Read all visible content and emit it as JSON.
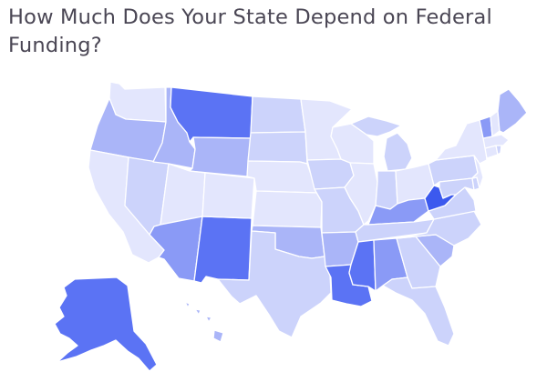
{
  "title": "How Much Does Your State Depend on Federal Funding?",
  "palette": {
    "t1": "#e3e6fd",
    "t2": "#ccd3fb",
    "t3": "#aab5f8",
    "t4": "#8a9af6",
    "t5": "#5b73f4",
    "t6": "#3c59ee",
    "border": "#ffffff"
  },
  "states": [
    {
      "name": "WA",
      "tier": "t1"
    },
    {
      "name": "OR",
      "tier": "t3"
    },
    {
      "name": "CA",
      "tier": "t1"
    },
    {
      "name": "NV",
      "tier": "t2"
    },
    {
      "name": "ID",
      "tier": "t3"
    },
    {
      "name": "MT",
      "tier": "t5"
    },
    {
      "name": "WY",
      "tier": "t3"
    },
    {
      "name": "UT",
      "tier": "t1"
    },
    {
      "name": "AZ",
      "tier": "t4"
    },
    {
      "name": "NM",
      "tier": "t5"
    },
    {
      "name": "CO",
      "tier": "t1"
    },
    {
      "name": "ND",
      "tier": "t2"
    },
    {
      "name": "SD",
      "tier": "t2"
    },
    {
      "name": "NE",
      "tier": "t1"
    },
    {
      "name": "KS",
      "tier": "t1"
    },
    {
      "name": "OK",
      "tier": "t3"
    },
    {
      "name": "TX",
      "tier": "t2"
    },
    {
      "name": "MN",
      "tier": "t1"
    },
    {
      "name": "IA",
      "tier": "t2"
    },
    {
      "name": "MO",
      "tier": "t2"
    },
    {
      "name": "AR",
      "tier": "t3"
    },
    {
      "name": "LA",
      "tier": "t5"
    },
    {
      "name": "WI",
      "tier": "t1"
    },
    {
      "name": "IL",
      "tier": "t1"
    },
    {
      "name": "MI",
      "tier": "t2"
    },
    {
      "name": "IN",
      "tier": "t2"
    },
    {
      "name": "OH",
      "tier": "t1"
    },
    {
      "name": "KY",
      "tier": "t4"
    },
    {
      "name": "TN",
      "tier": "t2"
    },
    {
      "name": "MS",
      "tier": "t5"
    },
    {
      "name": "AL",
      "tier": "t4"
    },
    {
      "name": "GA",
      "tier": "t2"
    },
    {
      "name": "FL",
      "tier": "t2"
    },
    {
      "name": "SC",
      "tier": "t3"
    },
    {
      "name": "NC",
      "tier": "t2"
    },
    {
      "name": "VA",
      "tier": "t2"
    },
    {
      "name": "WV",
      "tier": "t6"
    },
    {
      "name": "PA",
      "tier": "t2"
    },
    {
      "name": "NY",
      "tier": "t1"
    },
    {
      "name": "MD",
      "tier": "t2"
    },
    {
      "name": "DE",
      "tier": "t2"
    },
    {
      "name": "NJ",
      "tier": "t1"
    },
    {
      "name": "CT",
      "tier": "t1"
    },
    {
      "name": "RI",
      "tier": "t2"
    },
    {
      "name": "MA",
      "tier": "t1"
    },
    {
      "name": "VT",
      "tier": "t4"
    },
    {
      "name": "NH",
      "tier": "t1"
    },
    {
      "name": "ME",
      "tier": "t3"
    },
    {
      "name": "AK",
      "tier": "t5"
    },
    {
      "name": "HI",
      "tier": "t3"
    }
  ]
}
